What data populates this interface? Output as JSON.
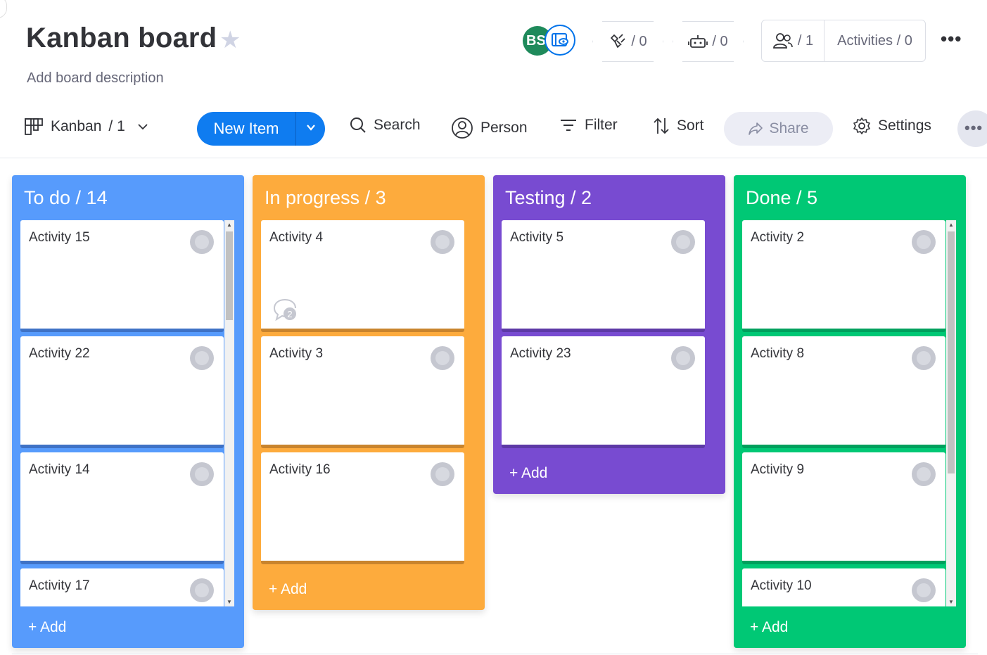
{
  "header": {
    "title": "Kanban board",
    "description": "Add board description",
    "avatar_initials": "BS",
    "integrations_count": "/ 0",
    "automations_count": "/ 0",
    "members_count": "/ 1",
    "activities_label": "Activities / 0"
  },
  "toolbar": {
    "view_name": "Kanban",
    "view_count": "/ 1",
    "new_item_label": "New Item",
    "search_label": "Search",
    "person_label": "Person",
    "filter_label": "Filter",
    "sort_label": "Sort",
    "share_label": "Share",
    "settings_label": "Settings"
  },
  "colors": {
    "todo": "#579bfc",
    "in_progress": "#fdab3d",
    "testing": "#784bd1",
    "done": "#00c875",
    "primary": "#0f7cf0"
  },
  "columns": [
    {
      "title": "To do / 14",
      "add_label": "+ Add",
      "cards": [
        "Activity 15",
        "Activity 22",
        "Activity 14",
        "Activity 17"
      ]
    },
    {
      "title": "In progress / 3",
      "add_label": "+ Add",
      "cards": [
        "Activity 4",
        "Activity 3",
        "Activity 16"
      ],
      "comment_badge": "2"
    },
    {
      "title": "Testing / 2",
      "add_label": "+ Add",
      "cards": [
        "Activity 5",
        "Activity 23"
      ]
    },
    {
      "title": "Done / 5",
      "add_label": "+ Add",
      "cards": [
        "Activity 2",
        "Activity 8",
        "Activity 9",
        "Activity 10"
      ]
    }
  ]
}
